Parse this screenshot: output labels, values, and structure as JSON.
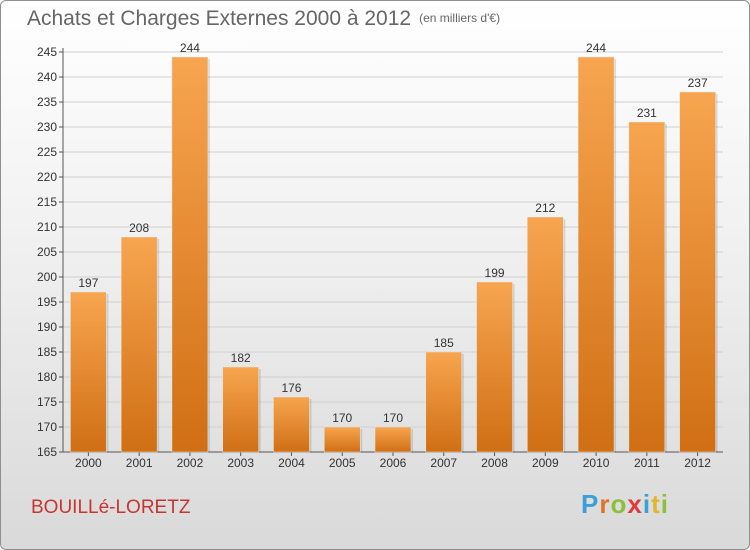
{
  "colors": {
    "bar_top": "#f7a550",
    "bar_bottom": "#d06f14",
    "grid": "#d0d0d0",
    "title": "#666666",
    "location": "#c8352f"
  },
  "header": {
    "title": "Achats et Charges Externes 2000 à 2012",
    "unit": "(en milliers d'€)"
  },
  "footer": {
    "location": "BOUILLé-LORETZ",
    "brand_letters": [
      {
        "ch": "P",
        "color": "#3aa0d8"
      },
      {
        "ch": "r",
        "color": "#e2732a"
      },
      {
        "ch": "o",
        "color": "#8cbf3a"
      },
      {
        "ch": "x",
        "color": "#e03a3a"
      },
      {
        "ch": "i",
        "color": "#3aa0d8"
      },
      {
        "ch": "t",
        "color": "#e2b52a"
      },
      {
        "ch": "i",
        "color": "#8cbf3a"
      }
    ]
  },
  "chart_data": {
    "type": "bar",
    "title": "Achats et Charges Externes 2000 à 2012",
    "subtitle": "(en milliers d'€)",
    "categories": [
      "2000",
      "2001",
      "2002",
      "2003",
      "2004",
      "2005",
      "2006",
      "2007",
      "2008",
      "2009",
      "2010",
      "2011",
      "2012"
    ],
    "values": [
      197,
      208,
      244,
      182,
      176,
      170,
      170,
      185,
      199,
      212,
      244,
      231,
      237
    ],
    "ylim": [
      165,
      245
    ],
    "yticks": [
      165,
      170,
      175,
      180,
      185,
      190,
      195,
      200,
      205,
      210,
      215,
      220,
      225,
      230,
      235,
      240,
      245
    ],
    "grid": true,
    "xlabel": "",
    "ylabel": ""
  }
}
